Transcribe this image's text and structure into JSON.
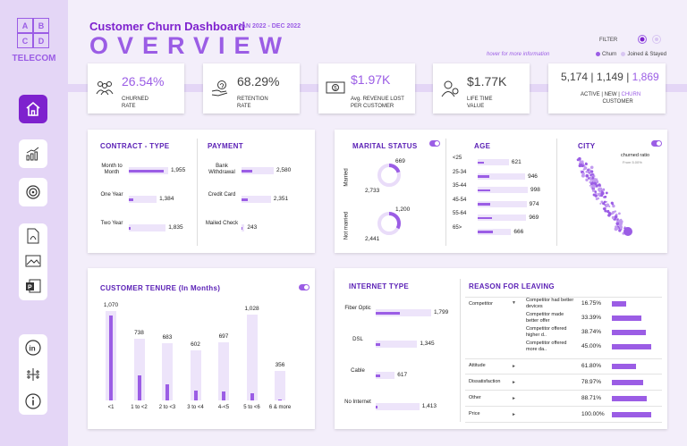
{
  "logo": {
    "letters": [
      "A",
      "B",
      "C",
      "D"
    ],
    "name": "TELECOM"
  },
  "header": {
    "title": "Customer Churn Dashboard",
    "overview": "OVERVIEW",
    "date_range": "JAN 2022 - DEC 2022",
    "hover_note": "hover for more information",
    "filter_label": "FILTER",
    "legend": [
      {
        "label": "Churn",
        "color": "#9b5de5"
      },
      {
        "label": "Joined & Stayed",
        "color": "#d8c6f2"
      }
    ]
  },
  "kpis": {
    "churned": {
      "value": "26.54%",
      "label1": "CHURNED",
      "label2": "RATE",
      "icon": "users-icon"
    },
    "retention": {
      "value": "68.29%",
      "label1": "RETENTION",
      "label2": "RATE",
      "icon": "hand-heart-icon"
    },
    "revenue": {
      "value": "$1.97K",
      "label1": "Avg. REVENUE LOST",
      "label2": "PER CUSTOMER",
      "icon": "money-icon"
    },
    "lifetime": {
      "value": "$1.77K",
      "label1": "LIFE TIME",
      "label2": "VALUE",
      "icon": "person-icon"
    },
    "customers": {
      "active": "5,174",
      "new": "1,149",
      "churn": "1,869",
      "sep": " | ",
      "label_active": "ACTIVE",
      "label_new": "NEW",
      "label_churn": "CHURN",
      "label2": "CUSTOMER"
    }
  },
  "contract": {
    "title": "CONTRACT - TYPE",
    "items": [
      {
        "label": "Month to Month",
        "value": 1955,
        "text": "1,955"
      },
      {
        "label": "One Year",
        "value": 1384,
        "text": "1,384"
      },
      {
        "label": "Two Year",
        "value": 1835,
        "text": "1,835"
      }
    ],
    "churn_fraction": [
      0.88,
      0.15,
      0.05
    ]
  },
  "payment": {
    "title": "PAYMENT",
    "items": [
      {
        "label": "Bank Withdrawal",
        "value": 2580,
        "text": "2,580"
      },
      {
        "label": "Credit Card",
        "value": 2351,
        "text": "2,351"
      },
      {
        "label": "Mailed Check",
        "value": 243,
        "text": "243"
      }
    ],
    "churn_fraction": [
      0.33,
      0.22,
      0.4
    ]
  },
  "marital": {
    "title": "MARITAL STATUS",
    "items": [
      {
        "label": "Married",
        "churn": "669",
        "stay": "2,733",
        "fraction": 0.2
      },
      {
        "label": "Not married",
        "churn": "1,200",
        "stay": "2,441",
        "fraction": 0.33
      }
    ]
  },
  "age": {
    "title": "AGE",
    "items": [
      {
        "label": "<25",
        "value": 621,
        "text": "621"
      },
      {
        "label": "25-34",
        "value": 946,
        "text": "946"
      },
      {
        "label": "35-44",
        "value": 998,
        "text": "998"
      },
      {
        "label": "45-54",
        "value": 974,
        "text": "974"
      },
      {
        "label": "55-64",
        "value": 969,
        "text": "969"
      },
      {
        "label": "65>",
        "value": 666,
        "text": "666"
      }
    ],
    "churn_fraction": [
      0.2,
      0.25,
      0.25,
      0.25,
      0.3,
      0.45
    ]
  },
  "city": {
    "title": "CITY",
    "note": "churned ratio",
    "subnote": "From 5.00%"
  },
  "tenure": {
    "title": "CUSTOMER TENURE (In Months)",
    "items": [
      {
        "label": "<1",
        "value": 1070,
        "text": "1,070",
        "churn_fraction": 0.95
      },
      {
        "label": "1 to <2",
        "value": 738,
        "text": "738",
        "churn_fraction": 0.4
      },
      {
        "label": "2 to <3",
        "value": 683,
        "text": "683",
        "churn_fraction": 0.28
      },
      {
        "label": "3 to <4",
        "value": 602,
        "text": "602",
        "churn_fraction": 0.2
      },
      {
        "label": "4-<5",
        "value": 697,
        "text": "697",
        "churn_fraction": 0.15
      },
      {
        "label": "5 to <6",
        "value": 1028,
        "text": "1,028",
        "churn_fraction": 0.08
      },
      {
        "label": "6 & more",
        "value": 356,
        "text": "356",
        "churn_fraction": 0.04
      }
    ]
  },
  "internet": {
    "title": "INTERNET TYPE",
    "items": [
      {
        "label": "Fiber Optic",
        "value": 1799,
        "text": "1,799"
      },
      {
        "label": "DSL",
        "value": 1345,
        "text": "1,345"
      },
      {
        "label": "Cable",
        "value": 617,
        "text": "617"
      },
      {
        "label": "No Internet",
        "value": 1413,
        "text": "1,413"
      }
    ],
    "churn_fraction": [
      0.43,
      0.1,
      0.25,
      0.04
    ]
  },
  "reasons": {
    "title": "REASON FOR LEAVING",
    "competitor": {
      "label": "Competitor",
      "items": [
        {
          "label": "Competitor had better devices",
          "pct": "16.75%",
          "value": 16.75
        },
        {
          "label": "Competitor made better offer",
          "pct": "33.39%",
          "value": 33.39
        },
        {
          "label": "Competitor offered higher d..",
          "pct": "38.74%",
          "value": 38.74
        },
        {
          "label": "Competitor offered more da..",
          "pct": "45.00%",
          "value": 45.0
        }
      ]
    },
    "others": [
      {
        "label": "Attitude",
        "pct": "61.80%",
        "value": 61.8
      },
      {
        "label": "Dissatisfaction",
        "pct": "78.97%",
        "value": 78.97
      },
      {
        "label": "Other",
        "pct": "88.71%",
        "value": 88.71
      },
      {
        "label": "Price",
        "pct": "100.00%",
        "value": 100
      }
    ]
  }
}
